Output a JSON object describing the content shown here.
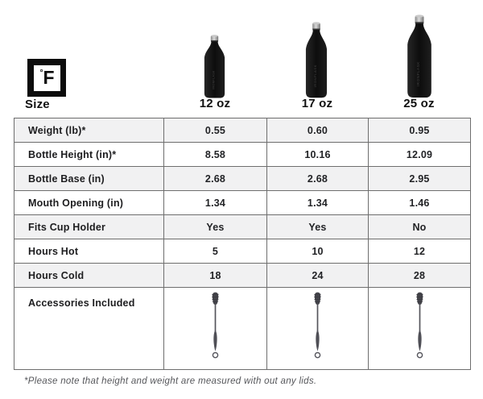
{
  "brand": {
    "degree_symbol": "°",
    "initial": "F"
  },
  "footnote": "*Please note that height and weight are measured with out any lids.",
  "chart_data": {
    "type": "table",
    "title": "Size",
    "columns": [
      "Size",
      "12 oz",
      "17 oz",
      "25 oz"
    ],
    "rows": [
      {
        "label": "Weight (lb)*",
        "values": [
          "0.55",
          "0.60",
          "0.95"
        ]
      },
      {
        "label": "Bottle Height (in)*",
        "values": [
          "8.58",
          "10.16",
          "12.09"
        ]
      },
      {
        "label": "Bottle Base (in)",
        "values": [
          "2.68",
          "2.68",
          "2.95"
        ]
      },
      {
        "label": "Mouth Opening (in)",
        "values": [
          "1.34",
          "1.34",
          "1.46"
        ]
      },
      {
        "label": "Fits Cup Holder",
        "values": [
          "Yes",
          "Yes",
          "No"
        ]
      },
      {
        "label": "Hours Hot",
        "values": [
          "5",
          "10",
          "12"
        ]
      },
      {
        "label": "Hours Cold",
        "values": [
          "18",
          "24",
          "28"
        ]
      },
      {
        "label": "Accessories Included",
        "values": [
          "cleaning-brush-icon",
          "cleaning-brush-icon",
          "cleaning-brush-icon"
        ],
        "icons": true
      }
    ],
    "layout": {
      "alternating_row_shading": true,
      "grid": true
    }
  },
  "colors": {
    "alt_row_bg": "#f1f1f2",
    "table_border": "#6e6e6e",
    "bottle_black": "#121212",
    "cap_silver": "#bdbdbd",
    "brush_gray": "#4c4c52",
    "footnote_gray": "#55565a"
  }
}
